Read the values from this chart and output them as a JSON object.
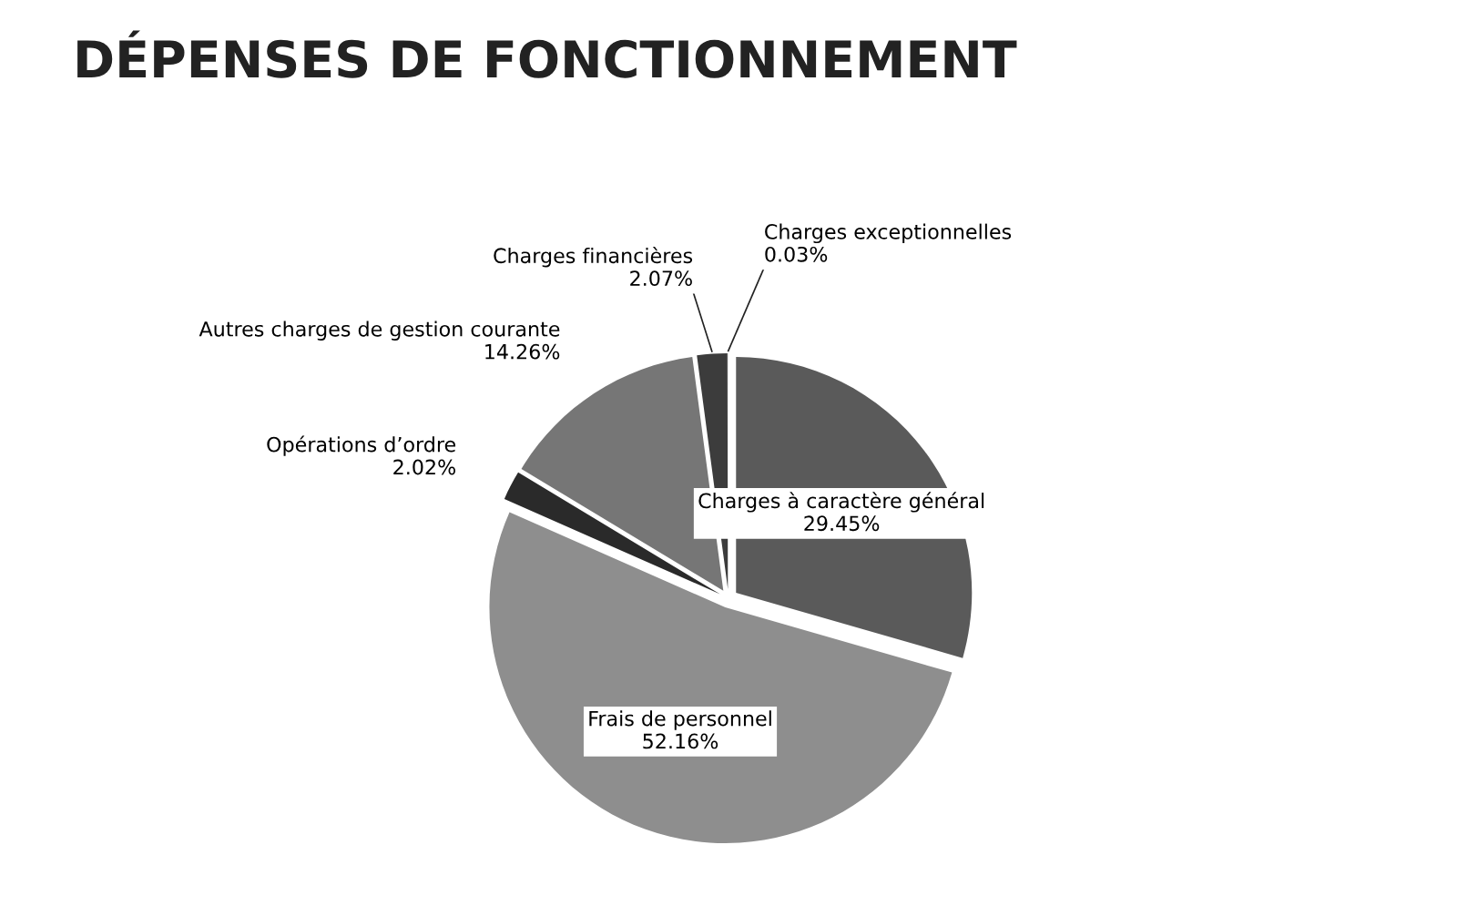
{
  "chart_data": {
    "type": "pie",
    "title": "DÉPENSES DE FONCTIONNEMENT",
    "categories": [
      "Charges à caractère général",
      "Frais de personnel",
      "Opérations d’ordre",
      "Autres charges de gestion courante",
      "Charges financières",
      "Charges exceptionnelles"
    ],
    "values": [
      29.45,
      52.16,
      2.02,
      14.26,
      2.07,
      0.03
    ],
    "colors": [
      "#5a5a5a",
      "#8e8e8e",
      "#2a2a2a",
      "#767676",
      "#3c3c3c",
      "#c8c8c8"
    ],
    "value_labels": [
      "29.45%",
      "52.16%",
      "2.02%",
      "14.26%",
      "2.07%",
      "0.03%"
    ],
    "legend": false
  }
}
